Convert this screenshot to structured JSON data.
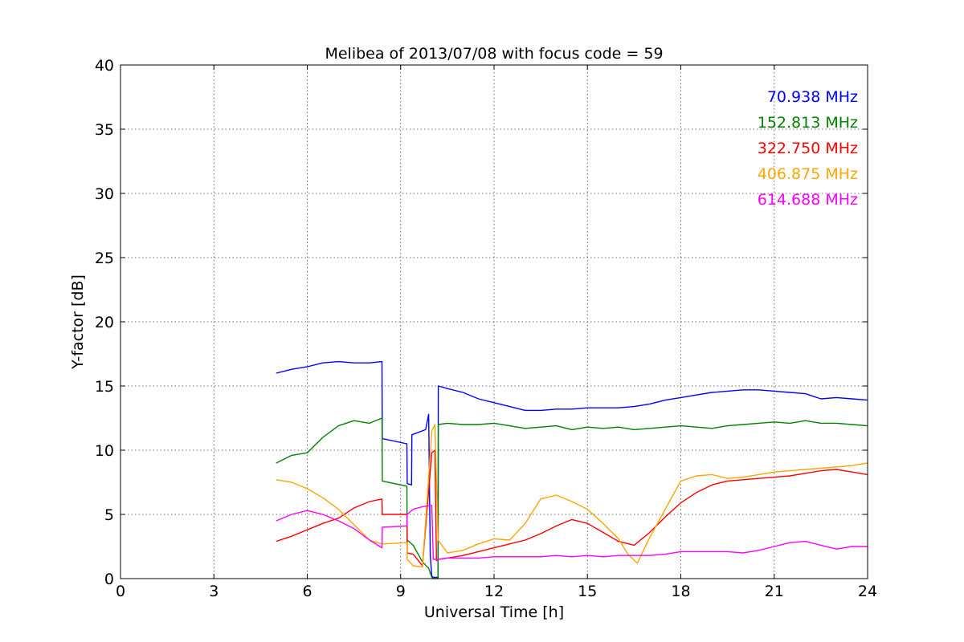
{
  "chart_data": {
    "type": "line",
    "title": "Melibea of 2013/07/08 with focus code = 59",
    "xlabel": "Universal Time [h]",
    "ylabel": "Y-factor [dB]",
    "xlim": [
      0,
      24
    ],
    "ylim": [
      0,
      40
    ],
    "xticks": [
      0,
      3,
      6,
      9,
      12,
      15,
      18,
      21,
      24
    ],
    "yticks": [
      0,
      5,
      10,
      15,
      20,
      25,
      30,
      35,
      40
    ],
    "grid": true,
    "legend_placement": "top-right",
    "series": [
      {
        "name": "70.938 MHz",
        "color": "#0000ff",
        "x": [
          5.0,
          5.5,
          6.0,
          6.5,
          7.0,
          7.5,
          8.0,
          8.4,
          8.41,
          9.2,
          9.21,
          9.35,
          9.36,
          9.8,
          9.9,
          9.95,
          10.0,
          10.05,
          10.2,
          10.21,
          10.5,
          11.0,
          11.5,
          12.0,
          12.5,
          13.0,
          13.5,
          14.0,
          14.5,
          15.0,
          15.5,
          16.0,
          16.5,
          17.0,
          17.5,
          18.0,
          18.5,
          19.0,
          19.5,
          20.0,
          20.5,
          21.0,
          21.5,
          22.0,
          22.5,
          23.0,
          23.5,
          24.0
        ],
        "y": [
          16.0,
          16.3,
          16.5,
          16.8,
          16.9,
          16.8,
          16.8,
          16.9,
          10.9,
          10.5,
          7.4,
          7.3,
          11.2,
          11.6,
          12.8,
          1.8,
          0.2,
          0.1,
          0.1,
          15.0,
          14.8,
          14.5,
          14.0,
          13.7,
          13.4,
          13.1,
          13.1,
          13.2,
          13.2,
          13.3,
          13.3,
          13.3,
          13.4,
          13.6,
          13.9,
          14.1,
          14.3,
          14.5,
          14.6,
          14.7,
          14.7,
          14.6,
          14.5,
          14.4,
          14.0,
          14.1,
          14.0,
          13.9
        ]
      },
      {
        "name": "152.813 MHz",
        "color": "#008000",
        "x": [
          5.0,
          5.5,
          6.0,
          6.5,
          7.0,
          7.5,
          8.0,
          8.4,
          8.41,
          9.2,
          9.21,
          9.4,
          9.7,
          9.9,
          10.0,
          10.05,
          10.2,
          10.21,
          10.5,
          11.0,
          11.5,
          12.0,
          12.5,
          13.0,
          13.5,
          14.0,
          14.5,
          15.0,
          15.5,
          16.0,
          16.5,
          17.0,
          17.5,
          18.0,
          18.5,
          19.0,
          19.5,
          20.0,
          20.5,
          21.0,
          21.5,
          22.0,
          22.5,
          23.0,
          23.5,
          24.0
        ],
        "y": [
          9.0,
          9.6,
          9.8,
          11.0,
          11.9,
          12.3,
          12.1,
          12.5,
          7.6,
          7.2,
          3.0,
          2.6,
          1.3,
          0.8,
          0.1,
          0.0,
          0.0,
          12.0,
          12.1,
          12.0,
          12.0,
          12.1,
          11.9,
          11.7,
          11.8,
          11.9,
          11.6,
          11.8,
          11.7,
          11.8,
          11.6,
          11.7,
          11.8,
          11.9,
          11.8,
          11.7,
          11.9,
          12.0,
          12.1,
          12.2,
          12.1,
          12.3,
          12.1,
          12.1,
          12.0,
          11.9
        ]
      },
      {
        "name": "322.750 MHz",
        "color": "#ff0000",
        "x": [
          5.0,
          5.5,
          6.0,
          6.5,
          7.0,
          7.5,
          8.0,
          8.4,
          8.41,
          9.2,
          9.21,
          9.4,
          9.7,
          10.0,
          10.1,
          10.15,
          10.2,
          10.5,
          11.0,
          11.5,
          12.0,
          12.5,
          13.0,
          13.5,
          14.0,
          14.5,
          15.0,
          15.5,
          16.0,
          16.5,
          17.0,
          17.5,
          18.0,
          18.5,
          19.0,
          19.5,
          20.0,
          20.5,
          21.0,
          21.5,
          22.0,
          22.5,
          23.0,
          23.5,
          24.0
        ],
        "y": [
          2.9,
          3.3,
          3.8,
          4.3,
          4.7,
          5.5,
          6.0,
          6.2,
          5.0,
          5.0,
          2.0,
          1.9,
          1.0,
          9.8,
          10.0,
          1.4,
          1.5,
          1.6,
          1.8,
          2.1,
          2.4,
          2.7,
          3.0,
          3.5,
          4.1,
          4.6,
          4.3,
          3.6,
          2.9,
          2.6,
          3.6,
          4.8,
          5.9,
          6.7,
          7.3,
          7.6,
          7.7,
          7.8,
          7.9,
          8.0,
          8.2,
          8.4,
          8.5,
          8.3,
          8.1
        ]
      },
      {
        "name": "406.875 MHz",
        "color": "#ffa500",
        "x": [
          5.0,
          5.5,
          6.0,
          6.5,
          7.0,
          7.5,
          8.0,
          8.4,
          8.41,
          9.2,
          9.21,
          9.4,
          9.7,
          10.0,
          10.1,
          10.2,
          10.5,
          11.0,
          11.5,
          12.0,
          12.5,
          13.0,
          13.5,
          14.0,
          14.5,
          15.0,
          15.5,
          16.0,
          16.3,
          16.6,
          17.0,
          17.5,
          18.0,
          18.5,
          19.0,
          19.5,
          20.0,
          20.5,
          21.0,
          21.5,
          22.0,
          22.5,
          23.0,
          23.5,
          24.0
        ],
        "y": [
          7.7,
          7.5,
          7.0,
          6.3,
          5.4,
          4.2,
          3.0,
          2.7,
          2.7,
          2.8,
          1.5,
          1.0,
          0.9,
          11.5,
          12.0,
          3.0,
          2.0,
          2.2,
          2.7,
          3.1,
          3.0,
          4.3,
          6.2,
          6.5,
          6.0,
          5.4,
          4.3,
          3.1,
          1.9,
          1.2,
          3.2,
          5.4,
          7.6,
          8.0,
          8.1,
          7.8,
          7.9,
          8.1,
          8.3,
          8.4,
          8.5,
          8.6,
          8.7,
          8.8,
          9.0
        ]
      },
      {
        "name": "614.688 MHz",
        "color": "#ff00ff",
        "x": [
          5.0,
          5.5,
          6.0,
          6.5,
          7.0,
          7.5,
          8.0,
          8.4,
          8.41,
          9.2,
          9.21,
          9.4,
          9.7,
          10.0,
          10.05,
          10.2,
          10.5,
          11.0,
          11.5,
          12.0,
          12.5,
          13.0,
          13.5,
          14.0,
          14.5,
          15.0,
          15.5,
          16.0,
          16.5,
          17.0,
          17.5,
          18.0,
          18.5,
          19.0,
          19.5,
          20.0,
          20.5,
          21.0,
          21.5,
          22.0,
          22.5,
          23.0,
          23.5,
          24.0
        ],
        "y": [
          4.5,
          5.0,
          5.3,
          5.0,
          4.5,
          3.9,
          3.0,
          2.4,
          4.0,
          4.1,
          5.0,
          5.4,
          5.6,
          5.7,
          1.5,
          1.5,
          1.6,
          1.6,
          1.6,
          1.7,
          1.7,
          1.7,
          1.7,
          1.8,
          1.7,
          1.8,
          1.7,
          1.8,
          1.8,
          1.8,
          1.9,
          2.1,
          2.1,
          2.1,
          2.1,
          2.0,
          2.2,
          2.5,
          2.8,
          2.9,
          2.6,
          2.3,
          2.5,
          2.5
        ]
      }
    ]
  }
}
